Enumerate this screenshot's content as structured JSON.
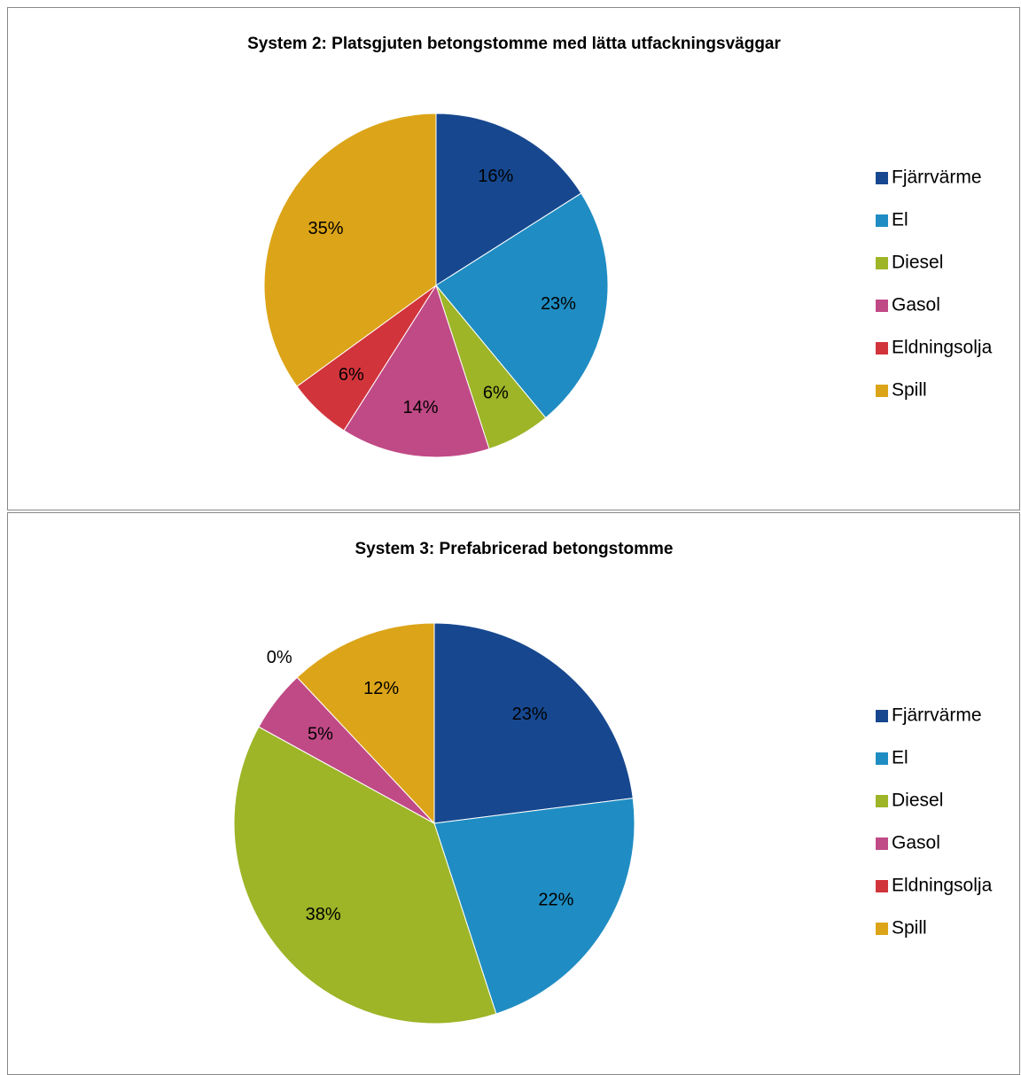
{
  "chart_data": [
    {
      "type": "pie",
      "title": "System 2: Platsgjuten betongstomme med lätta utfackningsväggar",
      "categories": [
        "Fjärrvärme",
        "El",
        "Diesel",
        "Gasol",
        "Eldningsolja",
        "Spill"
      ],
      "values": [
        16,
        23,
        6,
        14,
        6,
        35
      ],
      "value_labels": [
        "16%",
        "23%",
        "6%",
        "14%",
        "6%",
        "35%"
      ],
      "colors": [
        "#17488f",
        "#1f8dc3",
        "#9db527",
        "#c04a86",
        "#d2343c",
        "#dca418"
      ],
      "legend": "right"
    },
    {
      "type": "pie",
      "title": "System 3: Prefabricerad betongstomme",
      "categories": [
        "Fjärrvärme",
        "El",
        "Diesel",
        "Gasol",
        "Eldningsolja",
        "Spill"
      ],
      "values": [
        23,
        22,
        38,
        5,
        0,
        12
      ],
      "value_labels": [
        "23%",
        "22%",
        "38%",
        "5%",
        "0%",
        "12%"
      ],
      "colors": [
        "#17488f",
        "#1f8dc3",
        "#9db527",
        "#c04a86",
        "#d2343c",
        "#dca418"
      ],
      "legend": "right"
    }
  ]
}
